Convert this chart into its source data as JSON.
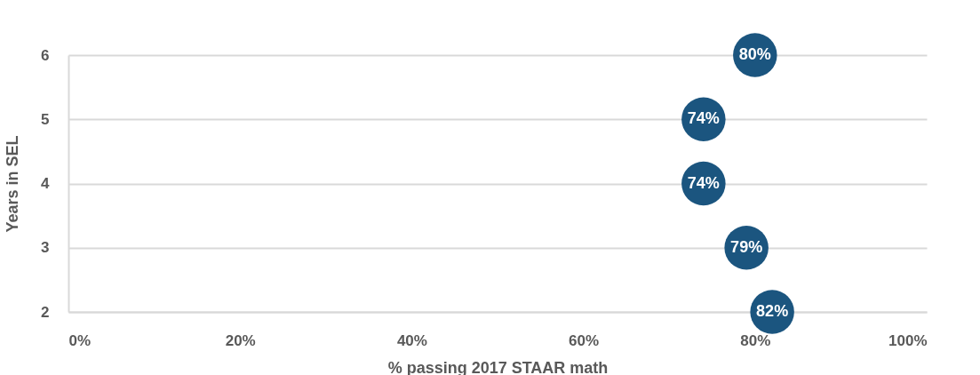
{
  "chart_data": {
    "type": "scatter",
    "orientation": "horizontal",
    "xlabel": "% passing 2017 STAAR math",
    "ylabel": "Years in SEL",
    "categories": [
      "6",
      "5",
      "4",
      "3",
      "2"
    ],
    "series": [
      {
        "color": "#1b557f",
        "values": [
          80,
          74,
          74,
          79,
          82
        ],
        "value_labels": [
          "80%",
          "74%",
          "74%",
          "79%",
          "82%"
        ]
      }
    ],
    "xlim": [
      0,
      100
    ],
    "xticks": [
      {
        "value": 0,
        "label": "0%"
      },
      {
        "value": 20,
        "label": "20%"
      },
      {
        "value": 40,
        "label": "40%"
      },
      {
        "value": 60,
        "label": "60%"
      },
      {
        "value": 80,
        "label": "80%"
      },
      {
        "value": 100,
        "label": "100%"
      }
    ],
    "grid": "y",
    "marker": "circle"
  }
}
